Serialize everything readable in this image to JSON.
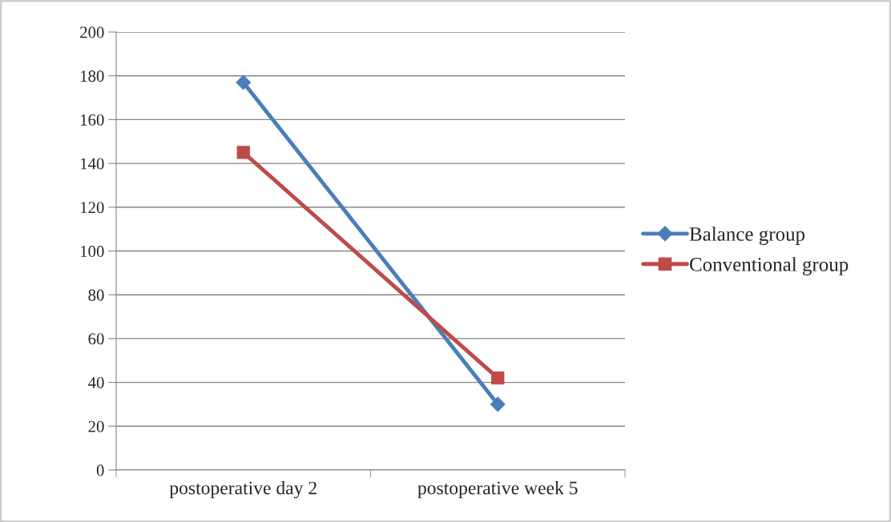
{
  "chart_data": {
    "type": "line",
    "categories": [
      "postoperative day 2",
      "postoperative week 5"
    ],
    "series": [
      {
        "name": "Balance group",
        "color": "#4a7ebb",
        "marker": "diamond",
        "values": [
          177,
          30
        ]
      },
      {
        "name": "Conventional group",
        "color": "#be4b48",
        "marker": "square",
        "values": [
          145,
          42
        ]
      }
    ],
    "ylim": [
      0,
      200
    ],
    "yticks": [
      0,
      20,
      40,
      60,
      80,
      100,
      120,
      140,
      160,
      180,
      200
    ],
    "grid": "y",
    "legend": "right",
    "line_style": "solid"
  }
}
